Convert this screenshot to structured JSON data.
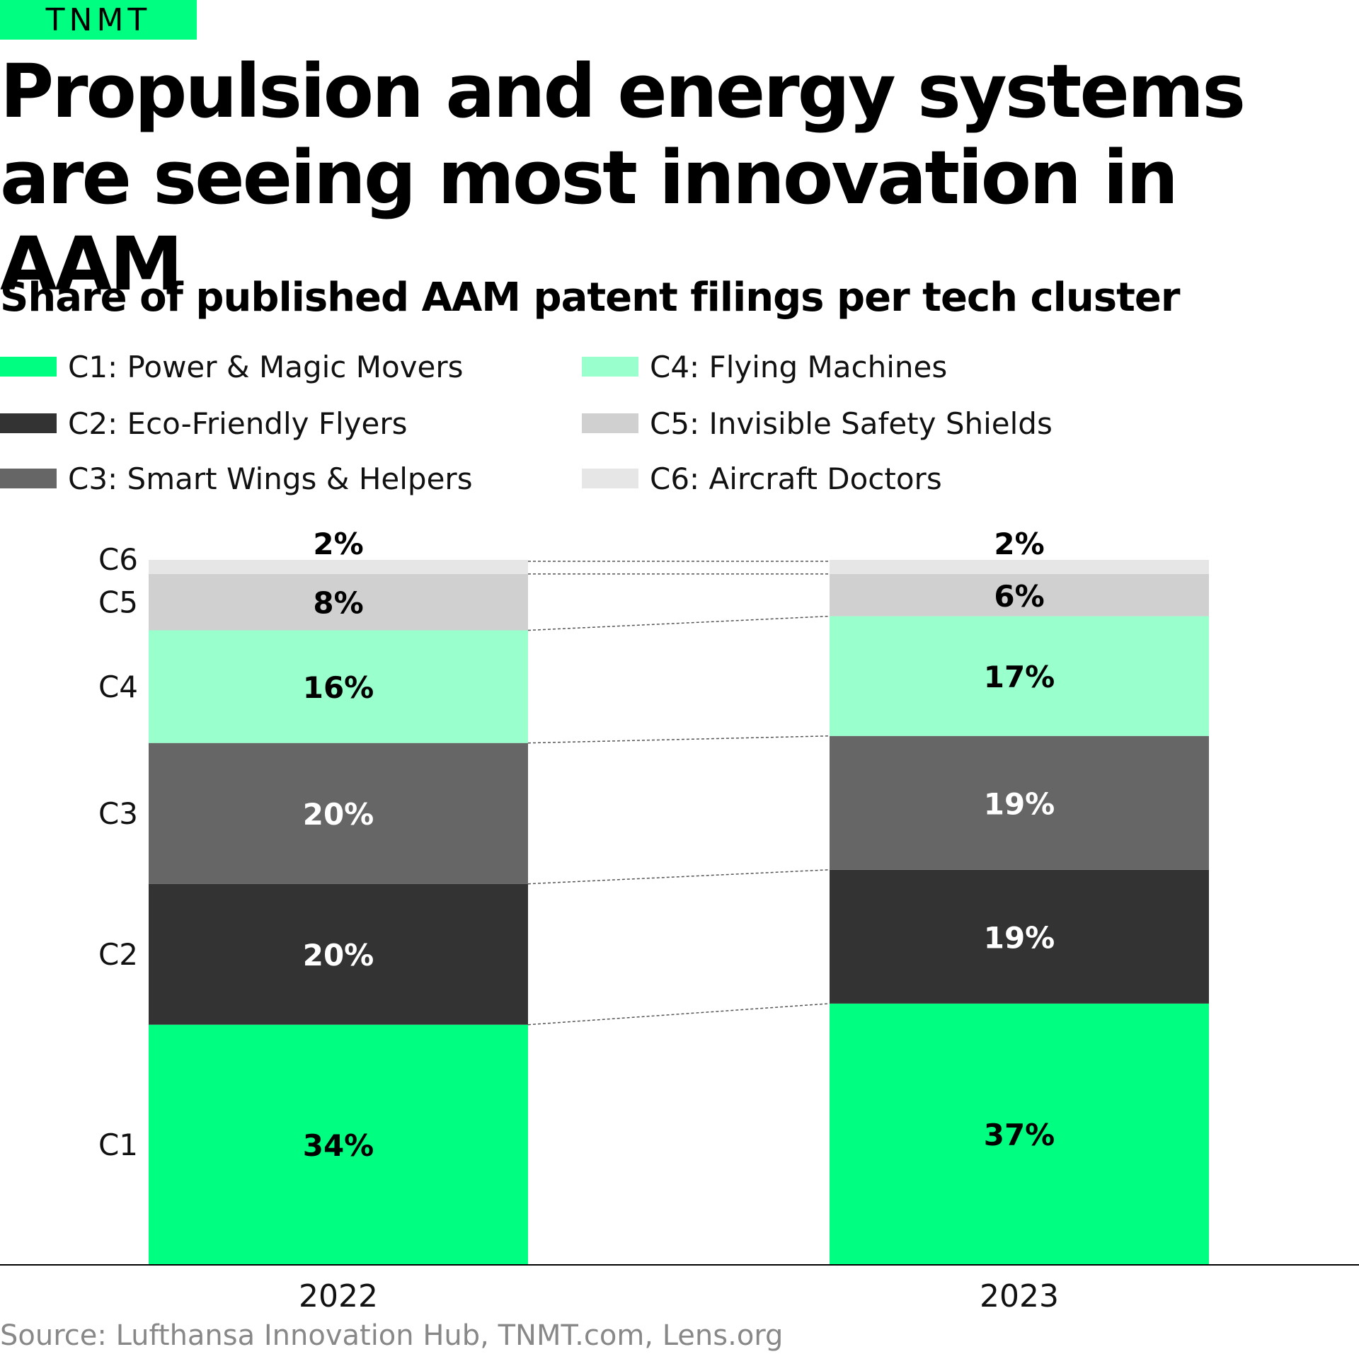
{
  "brand": {
    "name": "TNMT",
    "color": "#00ff80"
  },
  "header": {
    "title": "Propulsion and energy systems are seeing most innovation in AAM",
    "subtitle": "Share of published AAM patent filings per tech cluster"
  },
  "legend": [
    {
      "code": "C1",
      "label": "C1: Power & Magic Movers",
      "color": "#00ff80"
    },
    {
      "code": "C2",
      "label": "C2: Eco-Friendly Flyers",
      "color": "#333333"
    },
    {
      "code": "C3",
      "label": "C3: Smart Wings & Helpers",
      "color": "#666666"
    },
    {
      "code": "C4",
      "label": "C4: Flying Machines",
      "color": "#99ffcc"
    },
    {
      "code": "C5",
      "label": "C5: Invisible Safety Shields",
      "color": "#d0d0d0"
    },
    {
      "code": "C6",
      "label": "C6: Aircraft Doctors",
      "color": "#e6e6e6"
    }
  ],
  "chart_data": {
    "type": "bar",
    "stacked": true,
    "normalized": true,
    "categories": [
      "2022",
      "2023"
    ],
    "series": [
      {
        "name": "C1",
        "values": [
          34,
          37
        ],
        "labels": [
          "34%",
          "37%"
        ],
        "color": "#00ff80",
        "label_color": "#000000"
      },
      {
        "name": "C2",
        "values": [
          20,
          19
        ],
        "labels": [
          "20%",
          "19%"
        ],
        "color": "#333333",
        "label_color": "#ffffff"
      },
      {
        "name": "C3",
        "values": [
          20,
          19
        ],
        "labels": [
          "20%",
          "19%"
        ],
        "color": "#666666",
        "label_color": "#ffffff"
      },
      {
        "name": "C4",
        "values": [
          16,
          17
        ],
        "labels": [
          "16%",
          "17%"
        ],
        "color": "#99ffcc",
        "label_color": "#000000"
      },
      {
        "name": "C5",
        "values": [
          8,
          6
        ],
        "labels": [
          "8%",
          "6%"
        ],
        "color": "#d0d0d0",
        "label_color": "#000000"
      },
      {
        "name": "C6",
        "values": [
          2,
          2
        ],
        "labels": [
          "2%",
          "2%"
        ],
        "color": "#e6e6e6",
        "label_color": "#000000"
      }
    ],
    "y_labels": [
      "C1",
      "C2",
      "C3",
      "C4",
      "C5",
      "C6"
    ],
    "connector_lines": "dashed",
    "title": "Share of published AAM patent filings per tech cluster",
    "xlabel": "",
    "ylabel": ""
  },
  "footer": {
    "source": "Source: Lufthansa Innovation Hub, TNMT.com, Lens.org"
  }
}
